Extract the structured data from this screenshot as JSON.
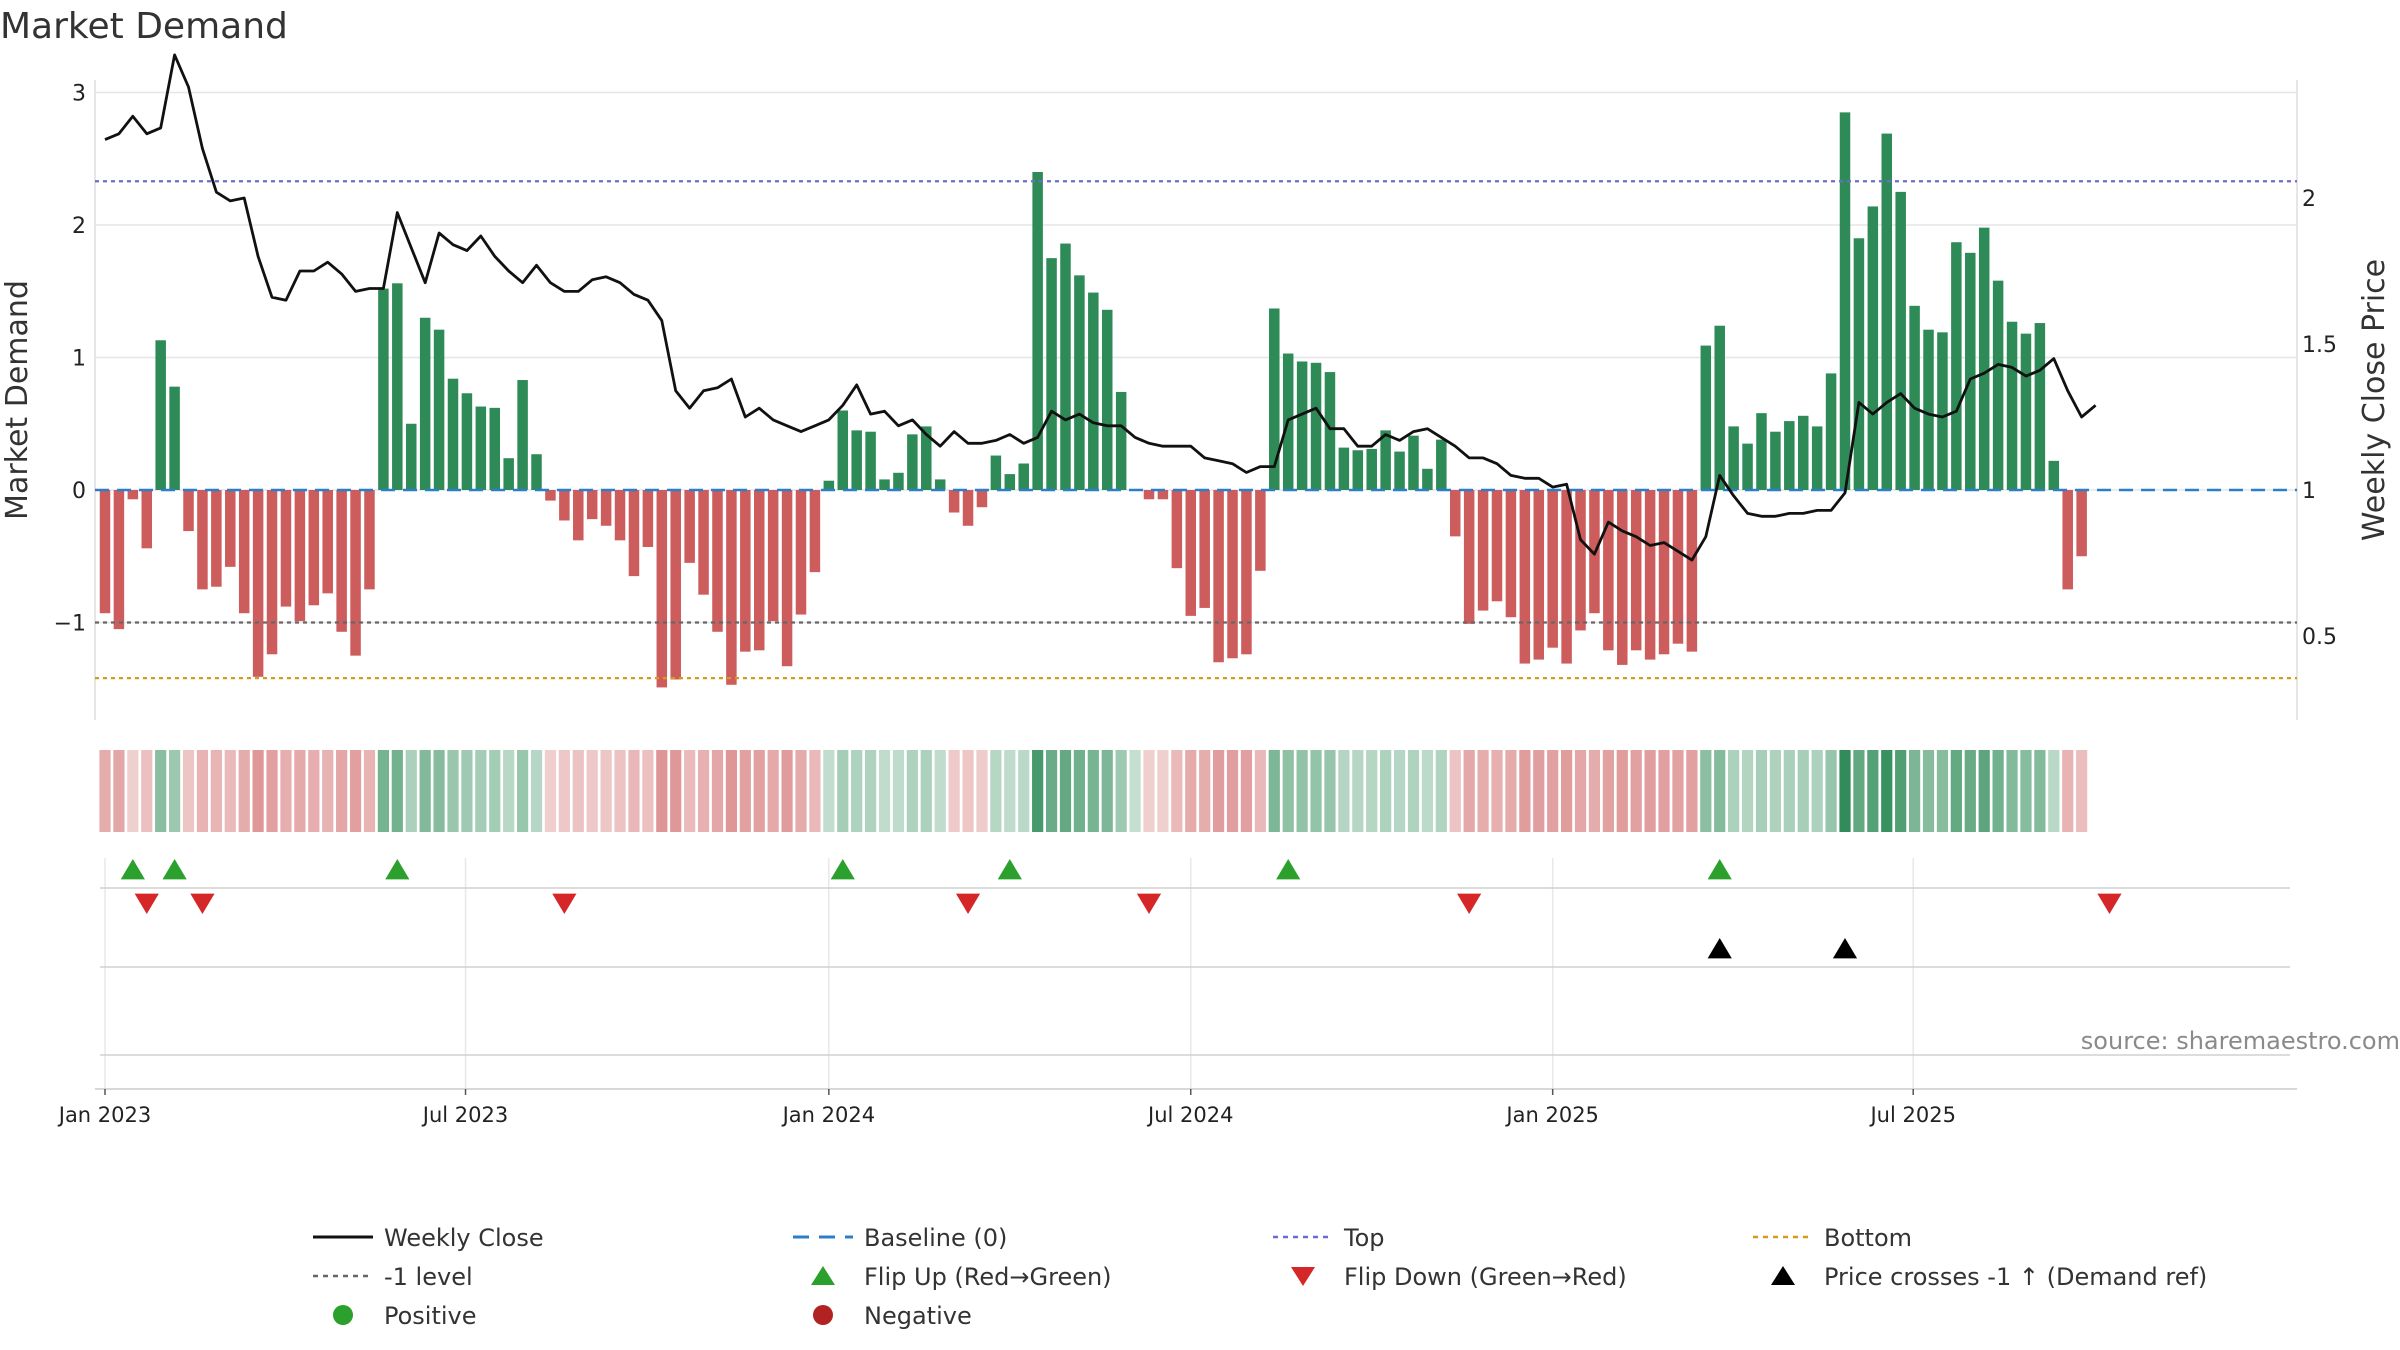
{
  "chart_data": {
    "type": "bar",
    "title": "Market Demand",
    "ylabel": "Market Demand",
    "y2label": "Weekly Close Price",
    "ylim": [
      -1.75,
      3.05
    ],
    "y2lim": [
      0.21,
      2.6
    ],
    "yticks": [
      3,
      2,
      1,
      0,
      -1
    ],
    "ytick_labels": [
      "3",
      "2",
      "1",
      "0",
      "−1"
    ],
    "y2ticks": [
      2,
      1.5,
      1,
      0.5
    ],
    "y2tick_labels": [
      "2",
      "1.5",
      "1",
      "0.5"
    ],
    "reference_lines": {
      "baseline": 0,
      "top": 2.33,
      "minus_one": -1,
      "bottom": -1.42
    },
    "xticks": [
      {
        "week": 1,
        "label": "Jan 2023"
      },
      {
        "week": 26.9,
        "label": "Jul 2023"
      },
      {
        "week": 53,
        "label": "Jan 2024"
      },
      {
        "week": 79,
        "label": "Jul 2024"
      },
      {
        "week": 105,
        "label": "Jan 2025"
      },
      {
        "week": 130.9,
        "label": "Jul 2025"
      }
    ],
    "demand_values": [
      -0.93,
      -1.05,
      -0.07,
      -0.44,
      1.13,
      0.78,
      -0.31,
      -0.75,
      -0.73,
      -0.58,
      -0.93,
      -1.41,
      -1.24,
      -0.88,
      -0.99,
      -0.87,
      -0.78,
      -1.07,
      -1.25,
      -0.75,
      1.52,
      1.56,
      0.5,
      1.3,
      1.21,
      0.84,
      0.73,
      0.63,
      0.62,
      0.24,
      0.83,
      0.27,
      -0.08,
      -0.23,
      -0.38,
      -0.22,
      -0.27,
      -0.38,
      -0.65,
      -0.43,
      -1.49,
      -1.43,
      -0.55,
      -0.79,
      -1.07,
      -1.47,
      -1.22,
      -1.21,
      -0.99,
      -1.33,
      -0.94,
      -0.62,
      0.07,
      0.6,
      0.45,
      0.44,
      0.08,
      0.13,
      0.42,
      0.48,
      0.08,
      -0.17,
      -0.27,
      -0.13,
      0.26,
      0.12,
      0.2,
      2.4,
      1.75,
      1.86,
      1.62,
      1.49,
      1.36,
      0.74,
      0.0,
      -0.07,
      -0.07,
      -0.59,
      -0.95,
      -0.89,
      -1.3,
      -1.27,
      -1.24,
      -0.61,
      1.37,
      1.03,
      0.97,
      0.96,
      0.89,
      0.32,
      0.3,
      0.31,
      0.45,
      0.29,
      0.41,
      0.16,
      0.38,
      -0.35,
      -1.01,
      -0.91,
      -0.84,
      -0.96,
      -1.31,
      -1.28,
      -1.19,
      -1.31,
      -1.06,
      -0.93,
      -1.21,
      -1.32,
      -1.21,
      -1.28,
      -1.24,
      -1.16,
      -1.22,
      1.09,
      1.24,
      0.48,
      0.35,
      0.58,
      0.44,
      0.52,
      0.56,
      0.48,
      0.88,
      2.85,
      1.9,
      2.14,
      2.69,
      2.25,
      1.39,
      1.21,
      1.19,
      1.87,
      1.79,
      1.98,
      1.58,
      1.27,
      1.18,
      1.26,
      0.22,
      -0.75,
      -0.5
    ],
    "close_values": [
      2.2,
      2.22,
      2.28,
      2.22,
      2.24,
      2.49,
      2.38,
      2.17,
      2.02,
      1.99,
      2.0,
      1.8,
      1.66,
      1.65,
      1.75,
      1.75,
      1.78,
      1.74,
      1.68,
      1.69,
      1.69,
      1.95,
      1.83,
      1.71,
      1.88,
      1.84,
      1.82,
      1.87,
      1.8,
      1.75,
      1.71,
      1.77,
      1.71,
      1.68,
      1.68,
      1.72,
      1.73,
      1.71,
      1.67,
      1.65,
      1.58,
      1.34,
      1.28,
      1.34,
      1.35,
      1.38,
      1.25,
      1.28,
      1.24,
      1.22,
      1.2,
      1.22,
      1.24,
      1.29,
      1.36,
      1.26,
      1.27,
      1.22,
      1.24,
      1.19,
      1.15,
      1.2,
      1.16,
      1.16,
      1.17,
      1.19,
      1.16,
      1.18,
      1.27,
      1.24,
      1.26,
      1.23,
      1.22,
      1.22,
      1.18,
      1.16,
      1.15,
      1.15,
      1.15,
      1.11,
      1.1,
      1.09,
      1.06,
      1.08,
      1.08,
      1.24,
      1.26,
      1.28,
      1.21,
      1.21,
      1.15,
      1.15,
      1.19,
      1.17,
      1.2,
      1.21,
      1.18,
      1.15,
      1.11,
      1.11,
      1.09,
      1.05,
      1.04,
      1.04,
      1.01,
      1.02,
      0.83,
      0.78,
      0.89,
      0.86,
      0.84,
      0.81,
      0.82,
      0.79,
      0.76,
      0.84,
      1.05,
      0.98,
      0.92,
      0.91,
      0.91,
      0.92,
      0.92,
      0.93,
      0.93,
      0.99,
      1.3,
      1.26,
      1.3,
      1.33,
      1.28,
      1.26,
      1.25,
      1.27,
      1.38,
      1.4,
      1.43,
      1.42,
      1.39,
      1.41,
      1.45,
      1.34,
      1.25,
      1.29
    ],
    "close_series_name": "Weekly Close",
    "heat_strip_colors": "derived from demand_values: green for positive, red for negative; intensity increases with magnitude",
    "flip_up_weeks": [
      3,
      6,
      22,
      54,
      66,
      86,
      117
    ],
    "flip_down_weeks": [
      4,
      8,
      34,
      63,
      76,
      99,
      145
    ],
    "price_cross_weeks": [
      117,
      126
    ],
    "legend": [
      {
        "label": "Weekly Close",
        "marker": "solid-line",
        "color": "#111111"
      },
      {
        "label": "Baseline (0)",
        "marker": "dashed-line",
        "color": "#2b7fc8"
      },
      {
        "label": "Top",
        "marker": "dotted-line",
        "color": "#6a6ad4"
      },
      {
        "label": "Bottom",
        "marker": "dotted-line",
        "color": "#d99a18"
      },
      {
        "label": "-1 level",
        "marker": "dotted-line",
        "color": "#666666"
      },
      {
        "label": "Flip Up (Red→Green)",
        "marker": "triangle-up",
        "color": "#2ca02c"
      },
      {
        "label": "Flip Down (Green→Red)",
        "marker": "triangle-down",
        "color": "#d62728"
      },
      {
        "label": "Price crosses -1 ↑ (Demand ref)",
        "marker": "triangle-up",
        "color": "#000000"
      },
      {
        "label": "Positive",
        "marker": "circle",
        "color": "#2ca02c"
      },
      {
        "label": "Negative",
        "marker": "circle",
        "color": "#b22222"
      }
    ],
    "legend_position": "bottom",
    "grid": true,
    "source": "source: sharemaestro.com"
  },
  "colors": {
    "positive_bar": "#2e8b57",
    "negative_bar": "#cd5c5c",
    "flip_up": "#2ca02c",
    "flip_down": "#d62728",
    "cross": "#000000"
  }
}
